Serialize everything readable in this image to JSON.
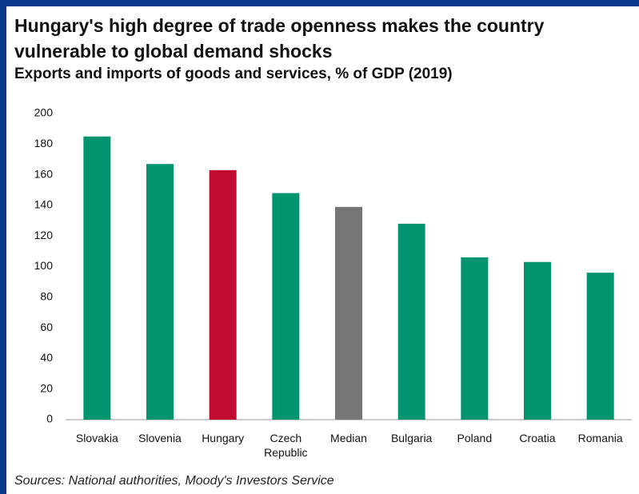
{
  "chart_data": {
    "type": "bar",
    "title": "Hungary's high degree of trade openness makes the country vulnerable to global demand shocks",
    "subtitle": "Exports and imports of goods and services, % of GDP (2019)",
    "categories": [
      "Slovakia",
      "Slovenia",
      "Hungary",
      "Czech Republic",
      "Median",
      "Bulgaria",
      "Poland",
      "Croatia",
      "Romania"
    ],
    "values": [
      185,
      167,
      163,
      148,
      139,
      128,
      106,
      103,
      96
    ],
    "colors": [
      "#00956e",
      "#00956e",
      "#c20b30",
      "#00956e",
      "#747678",
      "#00956e",
      "#00956e",
      "#00956e",
      "#00956e"
    ],
    "ylim": [
      0,
      200
    ],
    "yticks": [
      0,
      20,
      40,
      60,
      80,
      100,
      120,
      140,
      160,
      180,
      200
    ],
    "grid": false,
    "source": "Sources: National authorities, Moody's Investors Service"
  }
}
